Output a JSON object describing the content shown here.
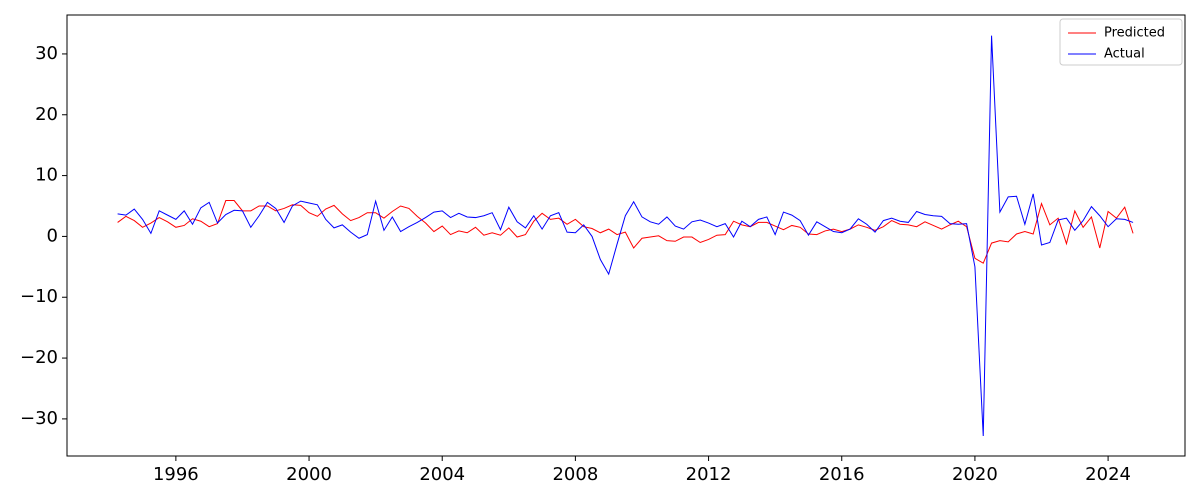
{
  "chart_data": {
    "type": "line",
    "x": [
      1994.25,
      1994.5,
      1994.75,
      1995,
      1995.25,
      1995.5,
      1995.75,
      1996,
      1996.25,
      1996.5,
      1996.75,
      1997,
      1997.25,
      1997.5,
      1997.75,
      1998,
      1998.25,
      1998.5,
      1998.75,
      1999,
      1999.25,
      1999.5,
      1999.75,
      2000,
      2000.25,
      2000.5,
      2000.75,
      2001,
      2001.25,
      2001.5,
      2001.75,
      2002,
      2002.25,
      2002.5,
      2002.75,
      2003,
      2003.25,
      2003.5,
      2003.75,
      2004,
      2004.25,
      2004.5,
      2004.75,
      2005,
      2005.25,
      2005.5,
      2005.75,
      2006,
      2006.25,
      2006.5,
      2006.75,
      2007,
      2007.25,
      2007.5,
      2007.75,
      2008,
      2008.25,
      2008.5,
      2008.75,
      2009,
      2009.25,
      2009.5,
      2009.75,
      2010,
      2010.25,
      2010.5,
      2010.75,
      2011,
      2011.25,
      2011.5,
      2011.75,
      2012,
      2012.25,
      2012.5,
      2012.75,
      2013,
      2013.25,
      2013.5,
      2013.75,
      2014,
      2014.25,
      2014.5,
      2014.75,
      2015,
      2015.25,
      2015.5,
      2015.75,
      2016,
      2016.25,
      2016.5,
      2016.75,
      2017,
      2017.25,
      2017.5,
      2017.75,
      2018,
      2018.25,
      2018.5,
      2018.75,
      2019,
      2019.25,
      2019.5,
      2019.75,
      2020,
      2020.25,
      2020.5,
      2020.75,
      2021,
      2021.25,
      2021.5,
      2021.75,
      2022,
      2022.25,
      2022.5,
      2022.75,
      2023,
      2023.25,
      2023.5,
      2023.75,
      2024,
      2024.25,
      2024.5,
      2024.75
    ],
    "series": [
      {
        "name": "Predicted",
        "color": "#ff0000",
        "values": [
          2.3,
          3.3,
          2.6,
          1.5,
          2.2,
          3.1,
          2.4,
          1.5,
          1.8,
          2.9,
          2.5,
          1.6,
          2.1,
          5.9,
          5.9,
          4.2,
          4.2,
          5.0,
          5.0,
          4.2,
          4.6,
          5.2,
          5.1,
          3.9,
          3.3,
          4.5,
          5.1,
          3.7,
          2.6,
          3.1,
          3.9,
          3.9,
          3.0,
          4.1,
          5.0,
          4.6,
          3.3,
          2.2,
          0.8,
          1.7,
          0.3,
          0.9,
          0.6,
          1.5,
          0.2,
          0.6,
          0.2,
          1.4,
          -0.1,
          0.3,
          2.5,
          3.8,
          2.8,
          3.0,
          2.0,
          2.8,
          1.6,
          1.3,
          0.6,
          1.2,
          0.3,
          0.7,
          -1.9,
          -0.3,
          -0.1,
          0.1,
          -0.7,
          -0.8,
          -0.1,
          -0.1,
          -1.0,
          -0.5,
          0.2,
          0.3,
          2.5,
          1.9,
          1.6,
          2.3,
          2.3,
          1.7,
          1.1,
          1.8,
          1.5,
          0.4,
          0.3,
          0.9,
          1.2,
          0.8,
          1.2,
          1.9,
          1.5,
          1.0,
          1.6,
          2.6,
          2.0,
          1.9,
          1.6,
          2.4,
          1.8,
          1.2,
          1.9,
          2.5,
          1.6,
          -3.6,
          -4.4,
          -1.1,
          -0.7,
          -0.9,
          0.4,
          0.8,
          0.4,
          5.4,
          1.9,
          3.0,
          -1.2,
          4.2,
          1.5,
          3.2,
          -1.9,
          4.1,
          3.0,
          4.8,
          0.5
        ]
      },
      {
        "name": "Actual",
        "color": "#0000ff",
        "values": [
          3.7,
          3.5,
          4.5,
          2.8,
          0.5,
          4.2,
          3.5,
          2.8,
          4.2,
          2.0,
          4.7,
          5.6,
          2.2,
          3.6,
          4.3,
          4.2,
          1.5,
          3.4,
          5.6,
          4.6,
          2.3,
          5.0,
          5.8,
          5.5,
          5.2,
          2.8,
          1.4,
          1.9,
          0.7,
          -0.3,
          0.3,
          5.8,
          1.0,
          3.2,
          0.8,
          1.6,
          2.3,
          3.1,
          4.0,
          4.2,
          3.1,
          3.8,
          3.2,
          3.1,
          3.4,
          3.9,
          1.1,
          4.8,
          2.4,
          1.4,
          3.4,
          1.2,
          3.4,
          3.9,
          0.7,
          0.6,
          1.9,
          0.0,
          -3.8,
          -6.2,
          -1.3,
          3.4,
          5.7,
          3.2,
          2.4,
          2.0,
          3.2,
          1.7,
          1.2,
          2.4,
          2.7,
          2.2,
          1.6,
          2.1,
          -0.1,
          2.5,
          1.6,
          2.8,
          3.2,
          0.3,
          4.0,
          3.5,
          2.6,
          0.2,
          2.4,
          1.6,
          0.8,
          0.6,
          1.2,
          2.9,
          2.0,
          0.7,
          2.6,
          3.0,
          2.5,
          2.3,
          4.1,
          3.6,
          3.4,
          3.3,
          2.1,
          2.0,
          2.1,
          -5.0,
          -32.8,
          33.0,
          4.0,
          6.5,
          6.6,
          2.0,
          7.0,
          -1.4,
          -1.0,
          2.7,
          3.0,
          1.0,
          2.6,
          4.9,
          3.4,
          1.6,
          2.9,
          2.8,
          2.3
        ]
      }
    ],
    "xlim": [
      1992.73,
      2026.31
    ],
    "ylim": [
      -36.1,
      36.4
    ],
    "xticks": [
      1996,
      2000,
      2004,
      2008,
      2012,
      2016,
      2020,
      2024
    ],
    "yticks": [
      {
        "value": -30,
        "label": "−30"
      },
      {
        "value": -20,
        "label": "−20"
      },
      {
        "value": -10,
        "label": "−10"
      },
      0,
      10,
      20,
      30
    ],
    "grid": false,
    "legend": "upper right"
  }
}
